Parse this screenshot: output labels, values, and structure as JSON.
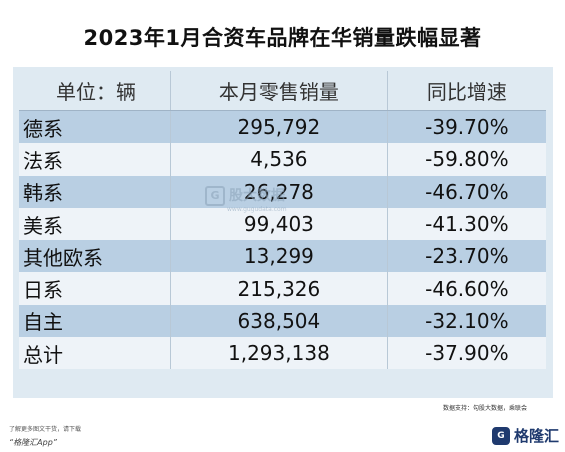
{
  "title": "2023年1月合资车品牌在华销量跌幅显著",
  "table": {
    "headers": [
      "单位：辆",
      "本月零售销量",
      "同比增速"
    ],
    "rows": [
      [
        "德系",
        "295,792",
        "-39.70%"
      ],
      [
        "法系",
        "4,536",
        "-59.80%"
      ],
      [
        "韩系",
        "26,278",
        "-46.70%"
      ],
      [
        "美系",
        "99,403",
        "-41.30%"
      ],
      [
        "其他欧系",
        "13,299",
        "-23.70%"
      ],
      [
        "日系",
        "215,326",
        "-46.60%"
      ],
      [
        "自主",
        "638,504",
        "-32.10%"
      ],
      [
        "总计",
        "1,293,138",
        "-37.90%"
      ]
    ]
  },
  "watermark": {
    "icon": "G",
    "text": "股大数据",
    "sub": "www.gugudata.com"
  },
  "source": "数据支持：勾股大数据，乘联会",
  "footer": {
    "line1": "了解更多图文干货，请下载",
    "line2": "“格隆汇App”"
  },
  "logo": {
    "mark": "G",
    "text": "格隆汇"
  }
}
